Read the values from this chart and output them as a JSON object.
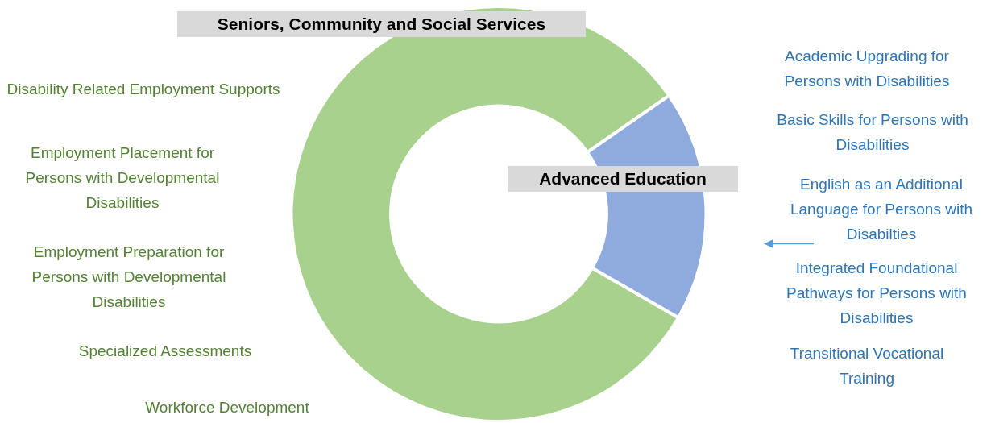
{
  "chart_data": {
    "type": "donut",
    "categories": [
      "Seniors, Community and Social Services",
      "Advanced Education"
    ],
    "values": [
      82,
      18
    ],
    "colors": [
      "#a9d18e",
      "#8faadc"
    ],
    "annotations": [
      "Disability Related Employment Supports",
      "Employment Placement for Persons with Developmental Disabilities",
      "Employment Preparation for Persons with Developmental Disabilities",
      "Specialized Assessments",
      "Workforce Development",
      "Academic Upgrading for Persons with Disabilities",
      "Basic Skills for Persons with Disabilities",
      "English as an Additional Language for Persons with Disabilties",
      "Integrated Foundational Pathways for Persons with Disabilities",
      "Transitional Vocational Training"
    ]
  }
}
